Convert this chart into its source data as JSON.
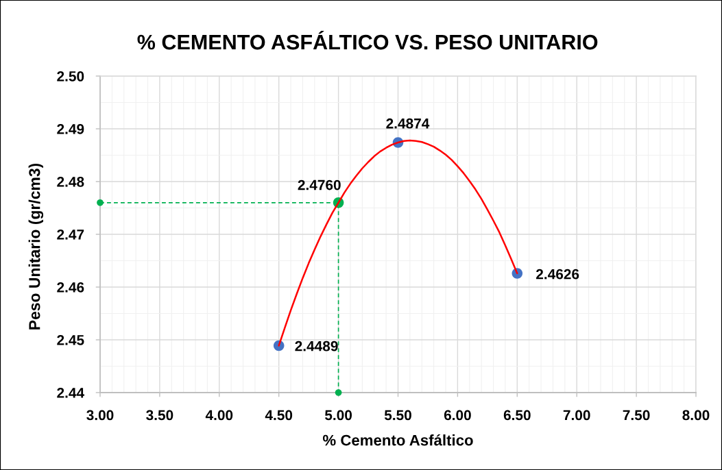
{
  "chart_data": {
    "type": "scatter",
    "title": "% CEMENTO ASFÁLTICO VS. PESO UNITARIO",
    "xlabel": "% Cemento Asfáltico",
    "ylabel": "Peso Unitario (gr/cm3)",
    "xlim": [
      3.0,
      8.0
    ],
    "xticks": [
      {
        "value": 3.0,
        "label": "3.00"
      },
      {
        "value": 3.5,
        "label": "3.50"
      },
      {
        "value": 4.0,
        "label": "4.00"
      },
      {
        "value": 4.5,
        "label": "4.50"
      },
      {
        "value": 5.0,
        "label": "5.00"
      },
      {
        "value": 5.5,
        "label": "5.50"
      },
      {
        "value": 6.0,
        "label": "6.00"
      },
      {
        "value": 6.5,
        "label": "6.50"
      },
      {
        "value": 7.0,
        "label": "7.00"
      },
      {
        "value": 7.5,
        "label": "7.50"
      },
      {
        "value": 8.0,
        "label": "8.00"
      }
    ],
    "ylim": [
      2.44,
      2.5
    ],
    "yticks": [
      2.44,
      2.45,
      2.46,
      2.47,
      2.48,
      2.49,
      {
        "value": 2.5,
        "label": "2.50"
      }
    ],
    "grid": true,
    "series": [
      {
        "type": "line",
        "color": "#00b050",
        "x": [
          3.0,
          5.0,
          5.0
        ],
        "values": [
          2.476,
          2.476,
          2.44
        ],
        "line_style": "dashed",
        "marker": "circle"
      },
      {
        "color": "#00b050",
        "x": [
          5.0
        ],
        "values": [
          2.476
        ],
        "marker": "circle",
        "value_labels": [
          "2.4760"
        ]
      },
      {
        "color": "#4472c4",
        "x": [
          4.5,
          5.5,
          6.5
        ],
        "values": [
          2.4489,
          2.4874,
          2.4626
        ],
        "marker": "circle",
        "value_labels": [
          "2.4489",
          "2.4874",
          "2.4626"
        ]
      },
      {
        "type": "line",
        "color": "#ff0000",
        "line_style": "solid",
        "marker": "none",
        "x": [
          4.5,
          4.55,
          4.6,
          4.65,
          4.7,
          4.75,
          4.8,
          4.85,
          4.9,
          4.95,
          5.0,
          5.05,
          5.1,
          5.15,
          5.2,
          5.25,
          5.3,
          5.35,
          5.4,
          5.45,
          5.5,
          5.55,
          5.6,
          5.65,
          5.7,
          5.75,
          5.8,
          5.85,
          5.9,
          5.95,
          6.0,
          6.05,
          6.1,
          6.15,
          6.2,
          6.25,
          6.3,
          6.35,
          6.4,
          6.45,
          6.5
        ],
        "values": [
          2.4489,
          2.4523,
          2.4556,
          2.4587,
          2.4617,
          2.4645,
          2.4671,
          2.4696,
          2.4719,
          2.4741,
          2.476,
          2.4779,
          2.4796,
          2.4811,
          2.4825,
          2.4837,
          2.4848,
          2.4857,
          2.4864,
          2.487,
          2.4874,
          2.4877,
          2.4878,
          2.4877,
          2.4875,
          2.4871,
          2.4866,
          2.4859,
          2.4851,
          2.4841,
          2.4829,
          2.4816,
          2.4801,
          2.4785,
          2.4767,
          2.4747,
          2.4726,
          2.4704,
          2.4679,
          2.4653,
          2.4626
        ]
      }
    ]
  }
}
